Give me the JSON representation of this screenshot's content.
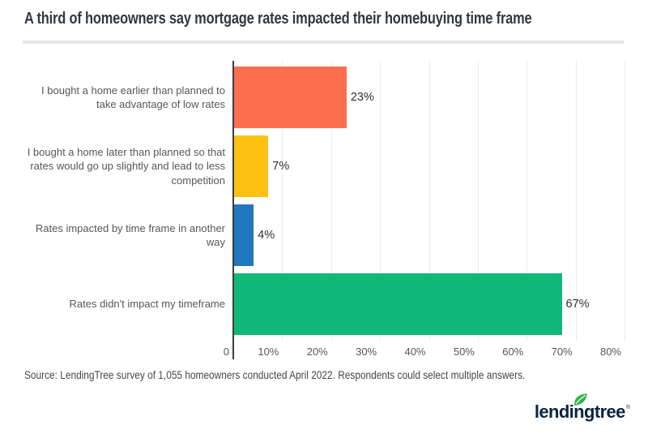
{
  "title": "A third of homeowners say mortgage rates impacted their homebuying time frame",
  "source": "Source: LendingTree survey of 1,055 homeowners conducted April 2022. Respondents could select multiple answers.",
  "logo": {
    "text": "lendingtree",
    "registered": "®",
    "text_color": "#0a2540",
    "leaf_color": "#2cb34a"
  },
  "colors": {
    "axis_line": "#3d3d3d",
    "gridline": "#eaeaea",
    "divider": "#e7e7e7",
    "title_text": "#33373d",
    "label_text": "#54575b"
  },
  "chart_data": {
    "type": "bar",
    "orientation": "horizontal",
    "title": "A third of homeowners say mortgage rates impacted their homebuying time frame",
    "categories": [
      "I bought a home earlier than planned to take advantage of low rates",
      "I bought a home later than planned so that rates would go up slightly and lead to less competition",
      "Rates impacted by time frame in another way",
      "Rates didn't impact my timeframe"
    ],
    "values": [
      23,
      7,
      4,
      67
    ],
    "value_labels": [
      "23%",
      "7%",
      "4%",
      "67%"
    ],
    "bar_colors": [
      "#fb6e4e",
      "#fdc112",
      "#2178be",
      "#10b878"
    ],
    "x_ticks": [
      "0",
      "10%",
      "20%",
      "30%",
      "40%",
      "50%",
      "60%",
      "70%",
      "80%"
    ],
    "xlim": [
      0,
      80
    ],
    "grid": true,
    "legend": false
  }
}
